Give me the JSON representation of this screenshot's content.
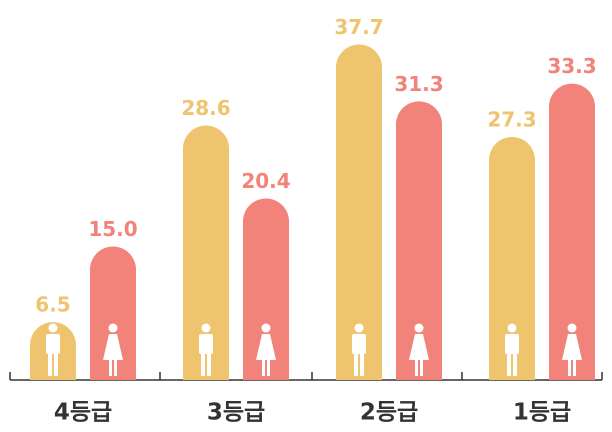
{
  "chart_data": {
    "type": "bar",
    "categories": [
      "4등급",
      "3등급",
      "2등급",
      "1등급"
    ],
    "series": [
      {
        "color": "#efc46f",
        "icon": "male",
        "values": [
          6.5,
          28.6,
          37.7,
          27.3
        ],
        "value_labels": [
          "6.5",
          "28.6",
          "37.7",
          "27.3"
        ]
      },
      {
        "color": "#f2837a",
        "icon": "female",
        "values": [
          15.0,
          20.4,
          31.3,
          33.3
        ],
        "value_labels": [
          "15.0",
          "20.4",
          "31.3",
          "33.3"
        ]
      }
    ]
  }
}
